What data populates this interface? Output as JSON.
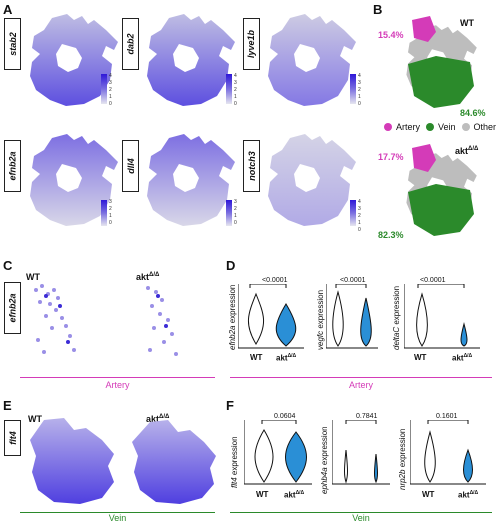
{
  "panels": {
    "A": "A",
    "B": "B",
    "C": "C",
    "D": "D",
    "E": "E",
    "F": "F"
  },
  "panel_a": {
    "genes": [
      "stab2",
      "dab2",
      "lyve1b",
      "efnb2a",
      "dll4",
      "notch3"
    ],
    "colorbars": [
      [
        "4",
        "3",
        "2",
        "1",
        "0"
      ],
      [
        "4",
        "3",
        "2",
        "1",
        "0"
      ],
      [
        "4",
        "3",
        "2",
        "1",
        "0"
      ],
      [
        "3",
        "2",
        "1",
        "0"
      ],
      [
        "3",
        "2",
        "1",
        "0"
      ],
      [
        "4",
        "3",
        "2",
        "1",
        "0"
      ]
    ]
  },
  "panel_b": {
    "wt_label": "WT",
    "wt_artery_pct": "15.4%",
    "wt_vein_pct": "84.6%",
    "legend": {
      "artery": "Artery",
      "vein": "Vein",
      "other": "Other"
    },
    "mut_label": "akt",
    "mut_sup": "Δ/Δ",
    "mut_artery_pct": "17.7%",
    "mut_vein_pct": "82.3%"
  },
  "panel_c": {
    "gene": "efnb2a",
    "wt": "WT",
    "mut": "akt",
    "mut_sup": "Δ/Δ",
    "section": "Artery"
  },
  "panel_d": {
    "section": "Artery",
    "plots": [
      {
        "ylabel_gene": "efnb2a",
        "ylabel_rest": " expression",
        "pval": "<0.0001"
      },
      {
        "ylabel_gene": "vegfc",
        "ylabel_rest": " expression",
        "pval": "<0.0001"
      },
      {
        "ylabel_gene": "deltaC",
        "ylabel_rest": " expression",
        "pval": "<0.0001"
      }
    ],
    "x_wt": "WT",
    "x_mut": "akt",
    "x_mut_sup": "Δ/Δ"
  },
  "panel_e": {
    "gene": "flt4",
    "wt": "WT",
    "mut": "akt",
    "mut_sup": "Δ/Δ",
    "section": "Vein"
  },
  "panel_f": {
    "section": "Vein",
    "plots": [
      {
        "ylabel_gene": "flt4",
        "ylabel_rest": " expression",
        "pval": "0.0604"
      },
      {
        "ylabel_gene": "ephb4a",
        "ylabel_rest": " expression",
        "pval": "0.7841"
      },
      {
        "ylabel_gene": "nrp2b",
        "ylabel_rest": " expression",
        "pval": "0.1601"
      }
    ],
    "x_wt": "WT",
    "x_mut": "akt",
    "x_mut_sup": "Δ/Δ"
  },
  "colors": {
    "expr_high": "#2e17d8",
    "expr_low": "#dcdcea",
    "artery": "#d43bb8",
    "vein": "#2b8a2b",
    "other": "#bdbdbd",
    "wt_violin": "#ffffff",
    "mut_violin": "#2a8fd6"
  }
}
